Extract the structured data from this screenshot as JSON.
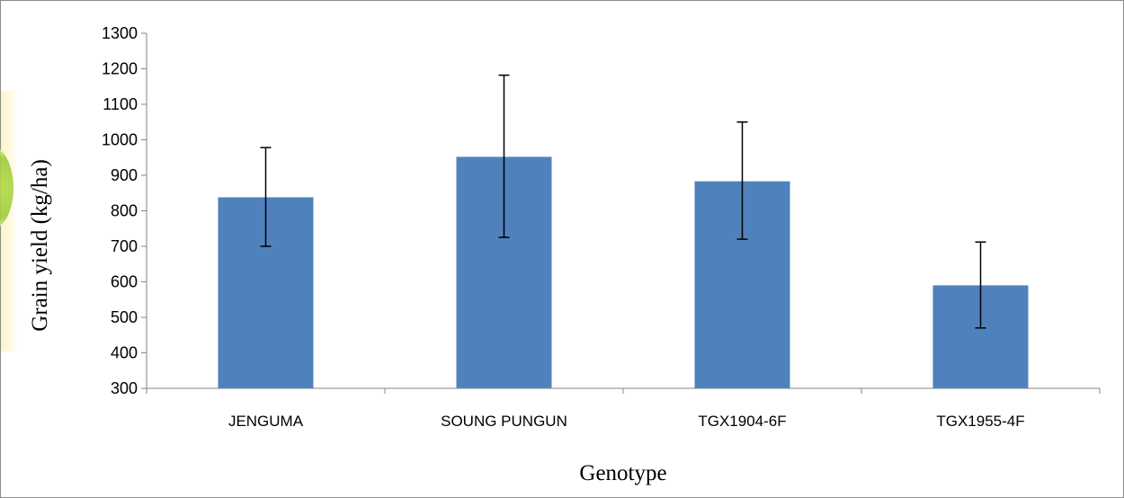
{
  "chart_data": {
    "type": "bar",
    "title": "",
    "xlabel": "Genotype",
    "ylabel": "Grain yield (kg/ha)",
    "categories": [
      "JENGUMA",
      "SOUNG PUNGUN",
      "TGX1904-6F",
      "TGX1955-4F"
    ],
    "values": [
      838,
      952,
      883,
      590
    ],
    "error_low": [
      700,
      725,
      720,
      470
    ],
    "error_high": [
      978,
      1182,
      1050,
      712
    ],
    "ylim": [
      300,
      1300
    ],
    "yticks": [
      300,
      400,
      500,
      600,
      700,
      800,
      900,
      1000,
      1100,
      1200,
      1300
    ],
    "grid": false,
    "bar_color": "#4f81bd"
  }
}
